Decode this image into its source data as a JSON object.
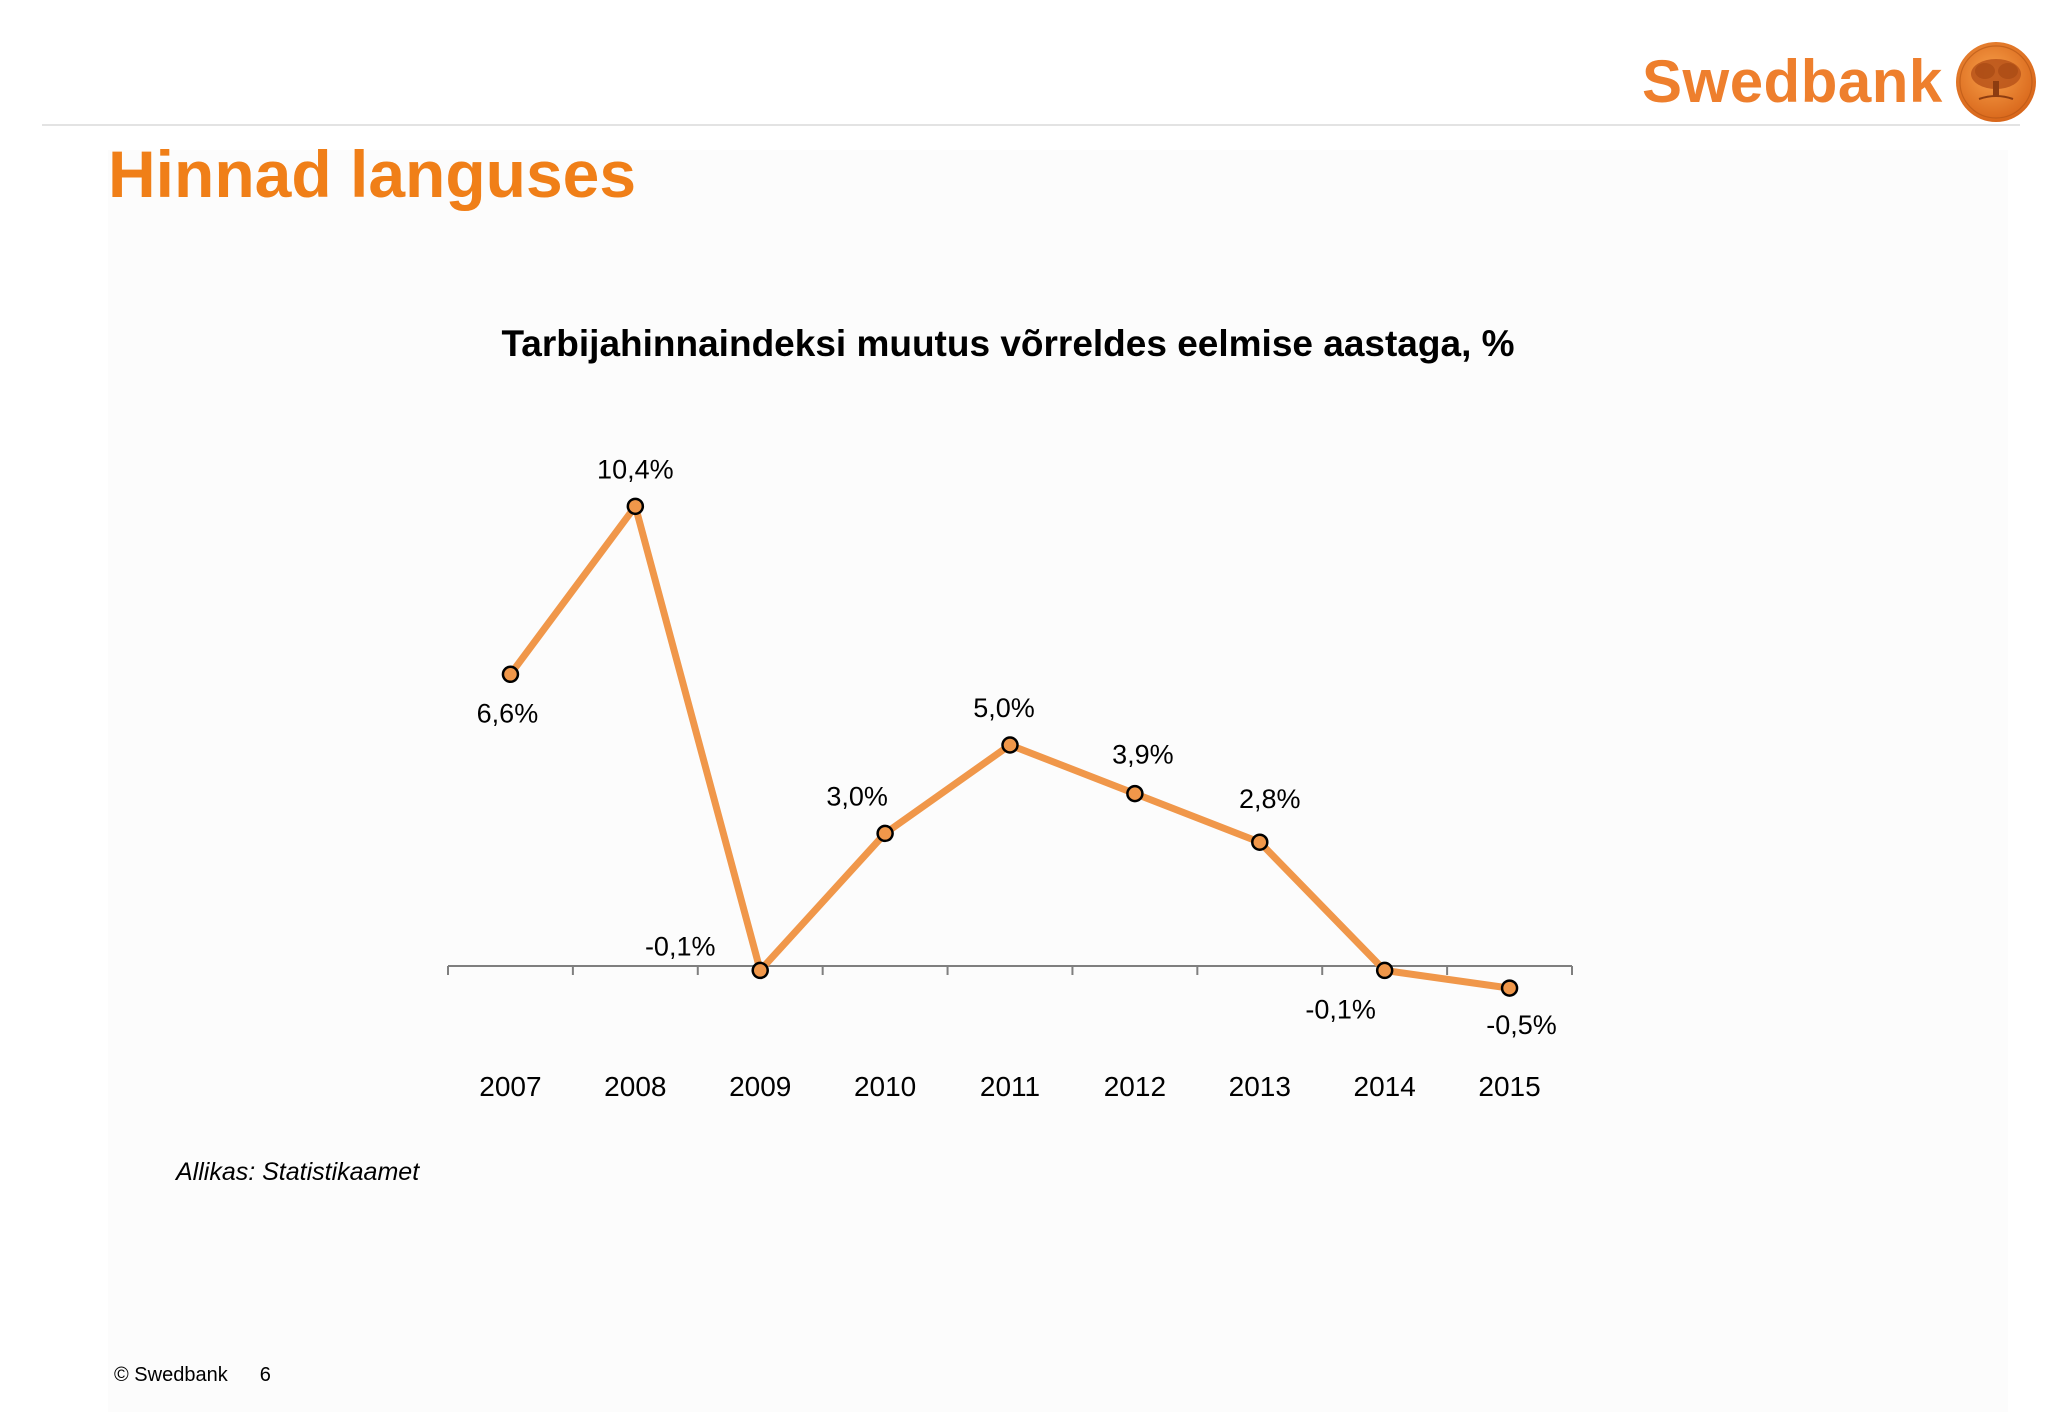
{
  "header": {
    "brand_name": "Swedbank",
    "title": "Hinnad languses"
  },
  "colors": {
    "accent": "#F07F18",
    "line": "#F0974A",
    "marker_fill": "#F0974A",
    "marker_stroke": "#000000"
  },
  "chart_data": {
    "type": "line",
    "title": "Tarbijahinnaindeksi muutus võrreldes eelmise aastaga, %",
    "categories": [
      "2007",
      "2008",
      "2009",
      "2010",
      "2011",
      "2012",
      "2013",
      "2014",
      "2015"
    ],
    "series": [
      {
        "values": [
          6.6,
          10.4,
          -0.1,
          3.0,
          5.0,
          3.9,
          2.8,
          -0.1,
          -0.5
        ],
        "data_labels": [
          "6,6%",
          "10,4%",
          "-0,1%",
          "3,0%",
          "5,0%",
          "3,9%",
          "2,8%",
          "-0,1%",
          "-0,5%"
        ]
      }
    ],
    "xlabel": "",
    "ylabel": "",
    "ylim": [
      -0.5,
      10.4
    ],
    "grid": false,
    "legend": false
  },
  "footer": {
    "source": "Allikas: Statistikaamet",
    "copyright": "© Swedbank",
    "page_number": "6"
  }
}
